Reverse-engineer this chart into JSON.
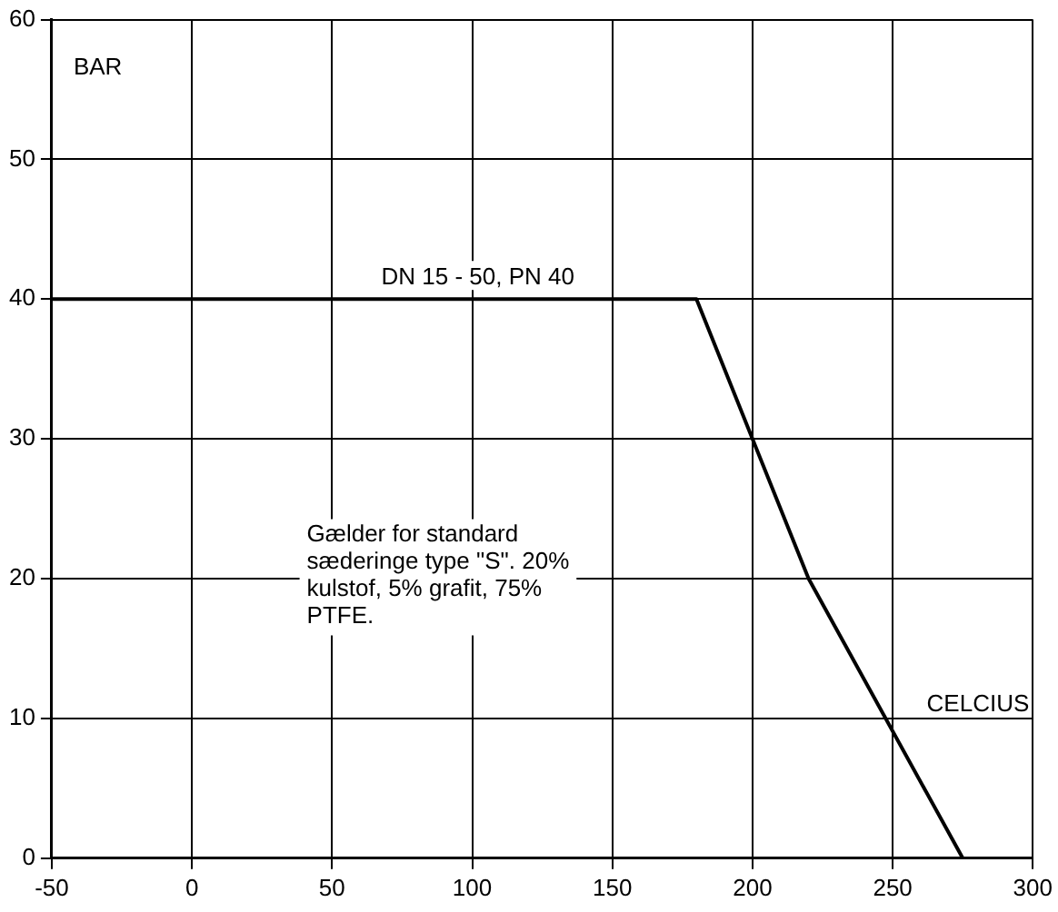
{
  "chart_data": {
    "type": "line",
    "xlabel": "CELCIUS",
    "ylabel": "BAR",
    "x": [
      -50,
      180,
      200,
      220,
      275
    ],
    "series": [
      {
        "color": "#000000",
        "values": [
          40,
          40,
          30,
          20,
          0
        ]
      }
    ],
    "xlim": [
      -50,
      300
    ],
    "xticks": [
      -50,
      0,
      50,
      100,
      150,
      200,
      250,
      300
    ],
    "ylim": [
      0,
      60
    ],
    "yticks": [
      0,
      10,
      20,
      30,
      40,
      50,
      60
    ],
    "grid": true,
    "legend": false,
    "marker": "none",
    "line_style": "solid",
    "annotations": [
      {
        "text": "DN 15 - 50, PN 40",
        "x": 102,
        "y": 40
      },
      "Gælder for standard sæderinge type \"S\". 20% kulstof, 5% grafit, 75% PTFE."
    ]
  }
}
